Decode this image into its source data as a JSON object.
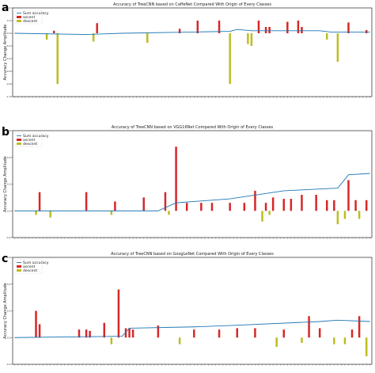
{
  "panels": [
    {
      "letter": "a",
      "title": "Accuracy of TreeCNN based on CaffeNet Compared With Origin of Every Classes",
      "ylabel": "Accuracy Change Amplitude"
    },
    {
      "letter": "b",
      "title": "Accuracy of TreeCNN based on VGG16Net Compared With Origin of Every Classes",
      "ylabel": "Accuracy Change Amplitude"
    },
    {
      "letter": "c",
      "title": "Accuracy of TreeCNN based on GoogLeNet Compared With Origin of Every Classes",
      "ylabel": "Accuracy Change Amplitude"
    }
  ],
  "legend": {
    "line": "Sum accuracy",
    "ascent": "ascent",
    "descent": "descent"
  },
  "colors": {
    "ascent": "#d62728",
    "descent": "#bcbd22",
    "line": "#1f77b4"
  },
  "chart_data": [
    {
      "type": "bar",
      "title": "Accuracy of TreeCNN based on CaffeNet Compared With Origin of Every Classes",
      "ylabel": "Accuracy Change Amplitude",
      "ylim": [
        -1.0,
        0.4
      ],
      "yticks": [
        -1.0,
        -0.8,
        -0.6,
        -0.4,
        -0.2,
        0.0,
        0.2,
        0.4
      ],
      "n_classes": 100,
      "ascent": [
        [
          11,
          0.04
        ],
        [
          23,
          0.16
        ],
        [
          46,
          0.07
        ],
        [
          51,
          0.2
        ],
        [
          57,
          0.2
        ],
        [
          68,
          0.2
        ],
        [
          70,
          0.1
        ],
        [
          71,
          0.1
        ],
        [
          76,
          0.18
        ],
        [
          79,
          0.2
        ],
        [
          80,
          0.1
        ],
        [
          93,
          0.17
        ],
        [
          98,
          0.05
        ]
      ],
      "descent": [
        [
          9,
          -0.1
        ],
        [
          12,
          -0.8
        ],
        [
          22,
          -0.13
        ],
        [
          37,
          -0.15
        ],
        [
          60,
          -0.8
        ],
        [
          65,
          -0.17
        ],
        [
          66,
          -0.2
        ],
        [
          87,
          -0.1
        ],
        [
          90,
          -0.45
        ]
      ],
      "sum_accuracy": [
        [
          0,
          0.0
        ],
        [
          20,
          -0.02
        ],
        [
          30,
          0.0
        ],
        [
          50,
          0.02
        ],
        [
          60,
          0.03
        ],
        [
          62,
          0.06
        ],
        [
          66,
          0.04
        ],
        [
          85,
          0.04
        ],
        [
          88,
          0.02
        ],
        [
          99,
          0.02
        ]
      ]
    },
    {
      "type": "bar",
      "title": "Accuracy of TreeCNN based on VGG16Net Compared With Origin of Every Classes",
      "ylabel": "Accuracy Change Amplitude",
      "ylim": [
        -0.2,
        0.6
      ],
      "yticks": [
        -0.2,
        0.0,
        0.2,
        0.4,
        0.6
      ],
      "n_classes": 100,
      "ascent": [
        [
          7,
          0.14
        ],
        [
          20,
          0.14
        ],
        [
          28,
          0.07
        ],
        [
          36,
          0.1
        ],
        [
          42,
          0.14
        ],
        [
          45,
          0.48
        ],
        [
          48,
          0.06
        ],
        [
          52,
          0.06
        ],
        [
          55,
          0.06
        ],
        [
          60,
          0.06
        ],
        [
          64,
          0.06
        ],
        [
          67,
          0.15
        ],
        [
          70,
          0.06
        ],
        [
          72,
          0.1
        ],
        [
          75,
          0.09
        ],
        [
          77,
          0.09
        ],
        [
          80,
          0.12
        ],
        [
          84,
          0.12
        ],
        [
          87,
          0.08
        ],
        [
          89,
          0.08
        ],
        [
          93,
          0.23
        ],
        [
          95,
          0.08
        ],
        [
          98,
          0.08
        ]
      ],
      "descent": [
        [
          6,
          -0.03
        ],
        [
          10,
          -0.05
        ],
        [
          27,
          -0.03
        ],
        [
          43,
          -0.03
        ],
        [
          69,
          -0.08
        ],
        [
          71,
          -0.03
        ],
        [
          90,
          -0.1
        ],
        [
          92,
          -0.06
        ],
        [
          96,
          -0.06
        ]
      ],
      "sum_accuracy": [
        [
          0,
          0.0
        ],
        [
          40,
          0.0
        ],
        [
          45,
          0.06
        ],
        [
          60,
          0.09
        ],
        [
          75,
          0.15
        ],
        [
          90,
          0.17
        ],
        [
          93,
          0.27
        ],
        [
          99,
          0.28
        ]
      ]
    },
    {
      "type": "bar",
      "title": "Accuracy of TreeCNN based on GoogLeNet Compared With Origin of Every Classes",
      "ylabel": "Accuracy Change Amplitude",
      "ylim": [
        -0.2,
        0.6
      ],
      "yticks": [
        -0.2,
        0.0,
        0.2,
        0.4,
        0.6
      ],
      "n_classes": 100,
      "ascent": [
        [
          6,
          0.2
        ],
        [
          7,
          0.1
        ],
        [
          18,
          0.06
        ],
        [
          20,
          0.06
        ],
        [
          21,
          0.05
        ],
        [
          25,
          0.11
        ],
        [
          29,
          0.36
        ],
        [
          31,
          0.07
        ],
        [
          32,
          0.07
        ],
        [
          33,
          0.06
        ],
        [
          40,
          0.09
        ],
        [
          50,
          0.06
        ],
        [
          57,
          0.06
        ],
        [
          62,
          0.07
        ],
        [
          67,
          0.07
        ],
        [
          75,
          0.06
        ],
        [
          82,
          0.16
        ],
        [
          85,
          0.07
        ],
        [
          94,
          0.06
        ],
        [
          96,
          0.16
        ]
      ],
      "descent": [
        [
          27,
          -0.05
        ],
        [
          46,
          -0.05
        ],
        [
          73,
          -0.07
        ],
        [
          80,
          -0.04
        ],
        [
          89,
          -0.05
        ],
        [
          92,
          -0.05
        ],
        [
          98,
          -0.14
        ]
      ],
      "sum_accuracy": [
        [
          0,
          0.0
        ],
        [
          30,
          0.01
        ],
        [
          32,
          0.07
        ],
        [
          50,
          0.08
        ],
        [
          60,
          0.09
        ],
        [
          85,
          0.12
        ],
        [
          90,
          0.13
        ],
        [
          99,
          0.12
        ]
      ]
    }
  ]
}
